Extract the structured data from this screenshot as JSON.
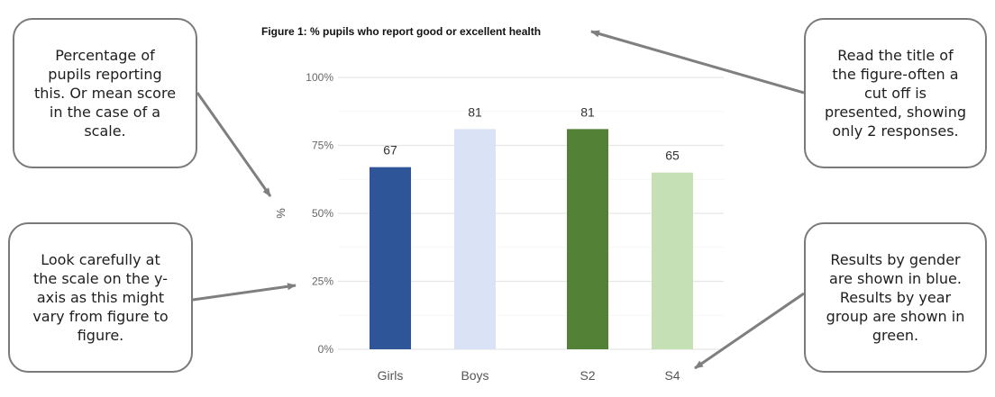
{
  "chart_data": {
    "type": "bar",
    "title": "Figure 1: % pupils who report good or excellent health",
    "ylabel": "%",
    "xlabel": "",
    "ylim": [
      0,
      100
    ],
    "yticks": [
      "0%",
      "25%",
      "50%",
      "75%",
      "100%"
    ],
    "ytick_values": [
      0,
      25,
      50,
      75,
      100
    ],
    "grid": true,
    "groups": [
      {
        "categories": [
          "Girls",
          "Boys"
        ],
        "values": [
          67,
          81
        ],
        "colors": [
          "#2e5597",
          "#d9e3f5"
        ]
      },
      {
        "categories": [
          "S2",
          "S4"
        ],
        "values": [
          81,
          65
        ],
        "colors": [
          "#538135",
          "#c5e0b4"
        ]
      }
    ],
    "data_labels": [
      "67",
      "81",
      "81",
      "65"
    ]
  },
  "callouts": {
    "top_left": [
      "Percentage of",
      "pupils reporting",
      "this. Or mean score",
      "in the case of a",
      "scale."
    ],
    "bottom_left": [
      "Look carefully at",
      "the scale on the y-",
      "axis as this might",
      "vary from figure to",
      "figure."
    ],
    "top_right": [
      "Read the title of",
      "the figure-often a",
      "cut off is",
      "presented, showing",
      "only 2 responses."
    ],
    "bottom_right": [
      "Results by gender",
      "are shown in blue.",
      "Results by year",
      "group are shown in",
      "green."
    ]
  },
  "colors": {
    "arrow": "#7f7f7f",
    "callout_border": "#7a7a7a",
    "grid": "#ececec",
    "axis_text": "#555555"
  }
}
